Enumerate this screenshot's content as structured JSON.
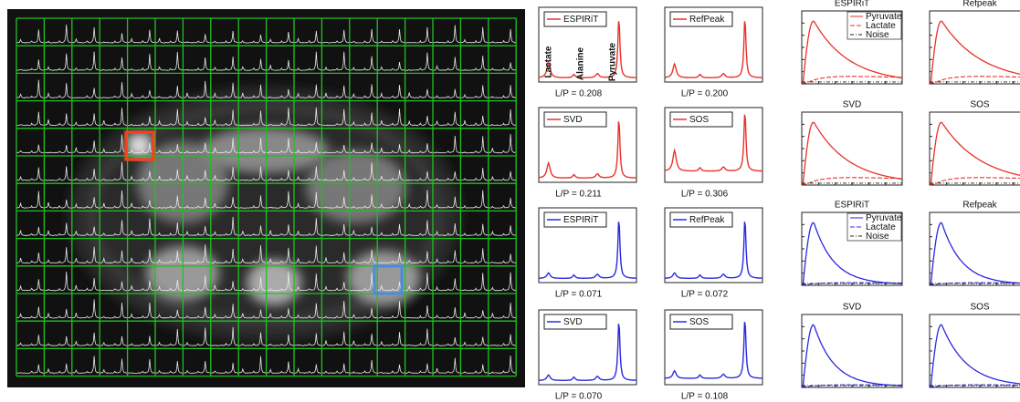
{
  "spectra_rows": [
    {
      "color": "#e8322a",
      "panels": [
        {
          "legend": "ESPIRiT",
          "ratio": "L/P = 0.208"
        },
        {
          "legend": "RefPeak",
          "ratio": "L/P = 0.200"
        }
      ]
    },
    {
      "color": "#e8322a",
      "panels": [
        {
          "legend": "SVD",
          "ratio": "L/P = 0.211"
        },
        {
          "legend": "SOS",
          "ratio": "L/P = 0.306"
        }
      ]
    },
    {
      "color": "#2a2ae0",
      "panels": [
        {
          "legend": "ESPIRiT",
          "ratio": "L/P = 0.071"
        },
        {
          "legend": "RefPeak",
          "ratio": "L/P = 0.072"
        }
      ]
    },
    {
      "color": "#2a2ae0",
      "panels": [
        {
          "legend": "SVD",
          "ratio": "L/P = 0.070"
        },
        {
          "legend": "SOS",
          "ratio": "L/P = 0.108"
        }
      ]
    }
  ],
  "peak_labels": [
    "Lactate",
    "Alanine",
    "Pyruvate"
  ],
  "timecourse_rows": [
    {
      "color": "#e8322a",
      "panels": [
        {
          "title": "ESPIRiT"
        },
        {
          "title": "Refpeak"
        }
      ]
    },
    {
      "color": "#e8322a",
      "panels": [
        {
          "title": "SVD"
        },
        {
          "title": "SOS"
        }
      ]
    },
    {
      "color": "#2a2ae0",
      "panels": [
        {
          "title": "ESPIRiT"
        },
        {
          "title": "Refpeak"
        }
      ]
    },
    {
      "color": "#2a2ae0",
      "panels": [
        {
          "title": "SVD"
        },
        {
          "title": "SOS"
        }
      ]
    }
  ],
  "timecourse_legend": [
    "Pyruvate",
    "Lactate",
    "Noise"
  ]
}
